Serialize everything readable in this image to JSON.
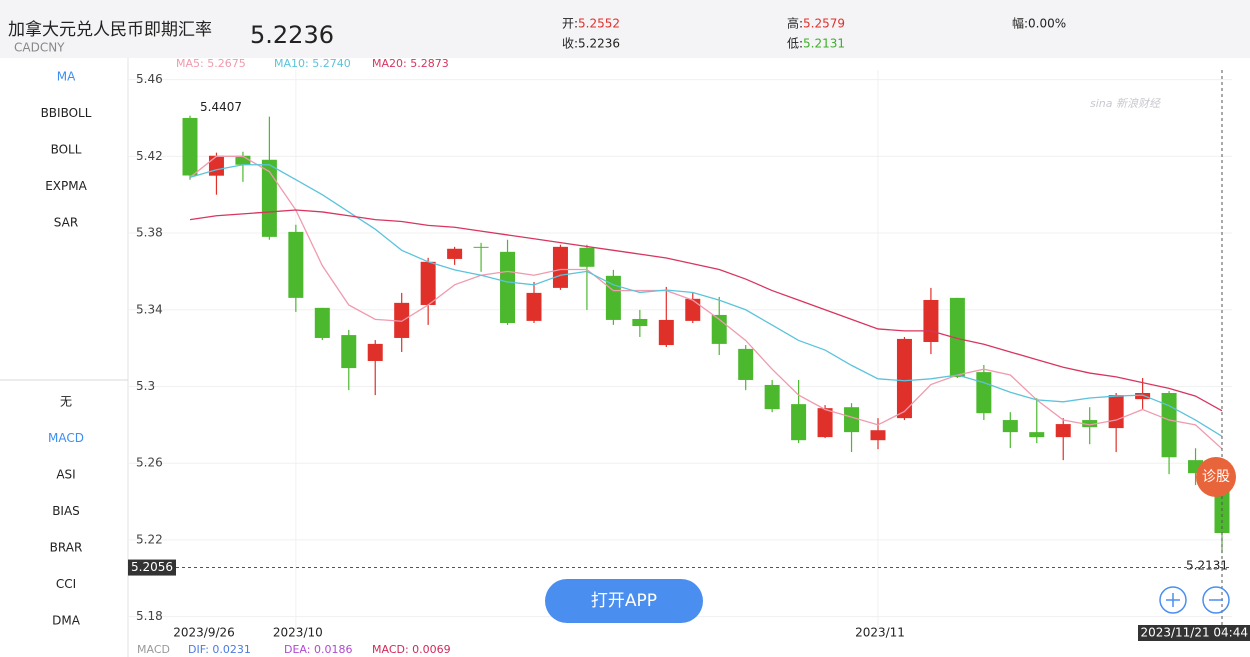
{
  "header": {
    "title": "加拿大元兑人民币即期汇率",
    "code": "CADCNY",
    "price": "5.2236",
    "quotes": [
      {
        "label": "开:",
        "value": "5.2552",
        "color": "#e0302a"
      },
      {
        "label": "收:",
        "value": "5.2236",
        "color": "#222222"
      },
      {
        "label": "高:",
        "value": "5.2579",
        "color": "#e0302a"
      },
      {
        "label": "低:",
        "value": "5.2131",
        "color": "#3fae2a"
      },
      {
        "label": "幅:",
        "value": "0.00%",
        "color": "#222222"
      }
    ]
  },
  "sidebar": {
    "main": [
      "MA",
      "BBIBOLL",
      "BOLL",
      "EXPMA",
      "SAR"
    ],
    "sub": [
      "无",
      "MACD",
      "ASI",
      "BIAS",
      "BRAR",
      "CCI",
      "DMA"
    ]
  },
  "macd_legend": [
    {
      "text": "MACD",
      "color": "#999999"
    },
    {
      "text": "DIF: 0.0231",
      "color": "#4a7be0"
    },
    {
      "text": "DEA: 0.0186",
      "color": "#b04ad0"
    },
    {
      "text": "MACD: 0.0069",
      "color": "#d02a5a"
    }
  ],
  "buttons": {
    "open_app": "打开APP",
    "diagnose": "诊股"
  },
  "watermark": "sina 新浪财经",
  "chart_data": {
    "type": "candlestick",
    "categories": [
      "2023/9/26",
      null,
      null,
      null,
      "2023/10",
      null,
      null,
      null,
      null,
      null,
      null,
      null,
      null,
      null,
      null,
      null,
      null,
      null,
      null,
      null,
      null,
      null,
      null,
      null,
      null,
      null,
      "2023/11",
      null,
      null,
      null,
      null,
      null,
      null,
      null,
      null,
      null,
      null,
      null,
      null,
      "2023/11/21 04:44"
    ],
    "open": [
      5.44,
      5.4099,
      5.4203,
      5.4182,
      5.3806,
      5.341,
      5.3268,
      5.3133,
      5.3253,
      5.3425,
      5.3665,
      5.3728,
      5.3702,
      5.3342,
      5.3514,
      5.3723,
      5.3577,
      5.3352,
      5.3216,
      5.3342,
      5.3373,
      5.3196,
      5.3008,
      5.2908,
      5.2736,
      5.2892,
      5.272,
      5.2835,
      5.3232,
      5.3462,
      5.3075,
      5.2825,
      5.2762,
      5.2736,
      5.2825,
      5.2783,
      5.2934,
      5.2966,
      5.2616,
      5.2552
    ],
    "high": [
      5.4412,
      5.4219,
      5.4224,
      5.4407,
      5.3843,
      5.341,
      5.3295,
      5.3242,
      5.3488,
      5.3671,
      5.3728,
      5.3749,
      5.3765,
      5.3545,
      5.3739,
      5.3739,
      5.3608,
      5.3399,
      5.3519,
      5.3488,
      5.3467,
      5.3216,
      5.3034,
      5.3034,
      5.2903,
      5.2913,
      5.2835,
      5.3258,
      5.3514,
      5.3462,
      5.3112,
      5.2866,
      5.2939,
      5.2835,
      5.2892,
      5.2966,
      5.3044,
      5.2976,
      5.2678,
      5.2579
    ],
    "low": [
      5.4078,
      5.4,
      5.4067,
      5.3765,
      5.3389,
      5.3242,
      5.2981,
      5.2955,
      5.318,
      5.3321,
      5.3634,
      5.3598,
      5.3321,
      5.3331,
      5.3504,
      5.3399,
      5.3321,
      5.3258,
      5.3206,
      5.3331,
      5.3164,
      5.2981,
      5.2866,
      5.2705,
      5.2731,
      5.2658,
      5.2673,
      5.2825,
      5.3169,
      5.3044,
      5.2825,
      5.2679,
      5.2705,
      5.2616,
      5.2699,
      5.2658,
      5.2877,
      5.2543,
      5.2486,
      5.2131
    ],
    "close": [
      5.41,
      5.4203,
      5.4156,
      5.378,
      5.3462,
      5.3253,
      5.3096,
      5.3222,
      5.3436,
      5.365,
      5.3718,
      5.3723,
      5.3331,
      5.3488,
      5.3728,
      5.3624,
      5.3347,
      5.3315,
      5.3347,
      5.3457,
      5.3222,
      5.3034,
      5.2882,
      5.272,
      5.2887,
      5.2762,
      5.2772,
      5.3248,
      5.3451,
      5.3049,
      5.2861,
      5.2762,
      5.2736,
      5.2804,
      5.2788,
      5.2955,
      5.2966,
      5.2631,
      5.2548,
      5.2236
    ],
    "up_color": "#e0302a",
    "down_color": "#4cb82e",
    "series": [
      {
        "name": "MA5: 5.2675",
        "color": "#f09aae",
        "values": [
          5.409,
          5.42,
          5.42,
          5.412,
          5.392,
          5.363,
          5.3425,
          5.335,
          5.334,
          5.3425,
          5.353,
          5.358,
          5.36,
          5.358,
          5.361,
          5.361,
          5.35,
          5.35,
          5.35,
          5.345,
          5.335,
          5.324,
          5.309,
          5.2955,
          5.288,
          5.284,
          5.28,
          5.287,
          5.301,
          5.306,
          5.309,
          5.306,
          5.293,
          5.2825,
          5.28,
          5.2825,
          5.288,
          5.2825,
          5.28,
          5.2675
        ]
      },
      {
        "name": "MA10: 5.2740",
        "color": "#5bc3dc",
        "values": [
          5.409,
          5.413,
          5.4156,
          5.4156,
          5.4078,
          5.4,
          5.391,
          5.382,
          5.371,
          5.365,
          5.3608,
          5.358,
          5.3545,
          5.353,
          5.358,
          5.36,
          5.353,
          5.349,
          5.3503,
          5.349,
          5.345,
          5.34,
          5.332,
          5.324,
          5.319,
          5.311,
          5.304,
          5.303,
          5.304,
          5.306,
          5.302,
          5.297,
          5.293,
          5.292,
          5.294,
          5.295,
          5.2955,
          5.29,
          5.2825,
          5.274
        ]
      },
      {
        "name": "MA20: 5.2873",
        "color": "#d8355f",
        "values": [
          5.387,
          5.389,
          5.39,
          5.391,
          5.392,
          5.391,
          5.389,
          5.387,
          5.386,
          5.384,
          5.383,
          5.381,
          5.379,
          5.377,
          5.375,
          5.373,
          5.371,
          5.369,
          5.367,
          5.364,
          5.361,
          5.356,
          5.35,
          5.345,
          5.34,
          5.335,
          5.33,
          5.329,
          5.329,
          5.325,
          5.322,
          5.318,
          5.314,
          5.31,
          5.307,
          5.305,
          5.302,
          5.299,
          5.295,
          5.2873
        ]
      }
    ],
    "ylim": [
      5.172,
      5.465
    ],
    "yticks": [
      5.46,
      5.42,
      5.38,
      5.34,
      {
        "value": 5.3,
        "label": "5.3"
      },
      5.26,
      5.22,
      5.18
    ],
    "grid": true,
    "annotations": [
      "5.4407",
      "5.2131"
    ],
    "crosshair": 5.2056
  }
}
